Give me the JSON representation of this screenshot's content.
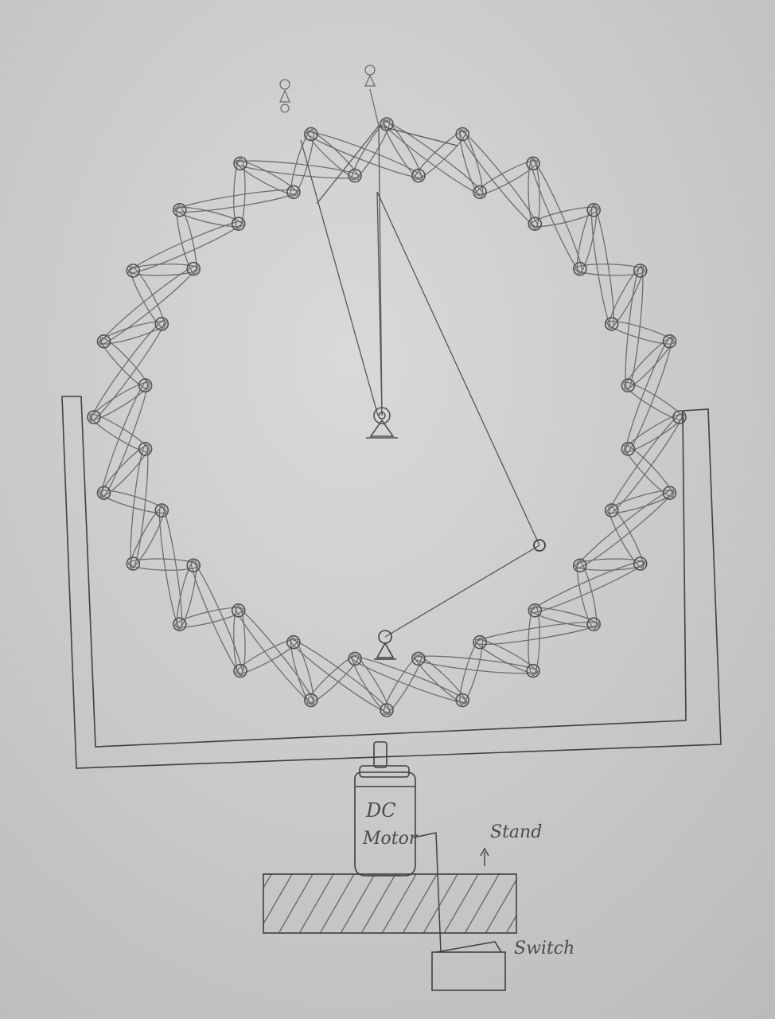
{
  "motor": {
    "line1": "DC",
    "line2": "Motor"
  },
  "labels": {
    "stand": "Stand",
    "switch": "Switch"
  },
  "colors": {
    "paper": "#cfd0ce",
    "ink": "#4d4e52",
    "faint": "#8e8f91"
  }
}
